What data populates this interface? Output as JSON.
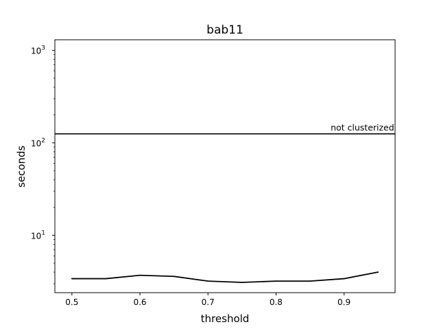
{
  "chart_data": {
    "type": "line",
    "title": "bab11",
    "xlabel": "threshold",
    "ylabel": "seconds",
    "yscale": "log",
    "xlim": [
      0.475,
      0.975
    ],
    "ylim": [
      2.4,
      1300
    ],
    "x_ticks": [
      "0.5",
      "0.6",
      "0.7",
      "0.8",
      "0.9"
    ],
    "x_tick_values": [
      0.5,
      0.6,
      0.7,
      0.8,
      0.9
    ],
    "y_ticks": [
      {
        "value": 10,
        "base": "10",
        "exp": "1"
      },
      {
        "value": 100,
        "base": "10",
        "exp": "2"
      },
      {
        "value": 1000,
        "base": "10",
        "exp": "3"
      }
    ],
    "grid": false,
    "series": [
      {
        "x": [
          0.5,
          0.55,
          0.6,
          0.65,
          0.7,
          0.75,
          0.8,
          0.85,
          0.9,
          0.95
        ],
        "values": [
          3.4,
          3.4,
          3.7,
          3.6,
          3.2,
          3.1,
          3.2,
          3.2,
          3.4,
          4.0
        ],
        "color": "#000000"
      }
    ],
    "hline": {
      "value": 125,
      "label": "not clusterized",
      "color": "#000000"
    }
  }
}
